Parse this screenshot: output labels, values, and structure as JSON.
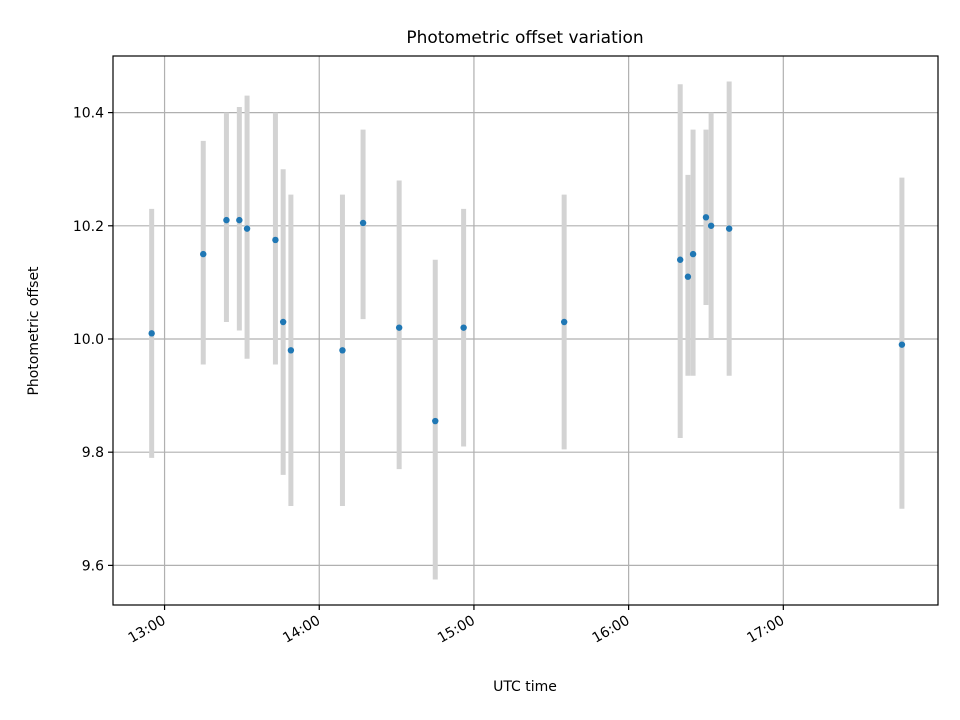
{
  "chart_data": {
    "type": "scatter",
    "title": "Photometric offset variation",
    "xlabel": "UTC time",
    "ylabel": "Photometric offset",
    "x_tick_labels": [
      "13:00",
      "14:00",
      "15:00",
      "16:00",
      "17:00"
    ],
    "x_tick_values": [
      "13:00",
      "14:00",
      "15:00",
      "16:00",
      "17:00"
    ],
    "y_ticks": [
      9.6,
      9.8,
      10.0,
      10.2,
      10.4
    ],
    "y_tick_labels": [
      "9.6",
      "9.8",
      "10.0",
      "10.2",
      "10.4"
    ],
    "xlim": [
      "12:40",
      "18:00"
    ],
    "ylim": [
      9.53,
      10.5
    ],
    "grid": true,
    "colors": {
      "point": "#1f77b4",
      "errorbar": "#d3d3d3",
      "grid": "#b0b0b0"
    },
    "points": [
      {
        "x": "12:55",
        "y": 10.01,
        "ylow": 9.79,
        "yhigh": 10.23
      },
      {
        "x": "13:15",
        "y": 10.15,
        "ylow": 9.955,
        "yhigh": 10.35
      },
      {
        "x": "13:24",
        "y": 10.21,
        "ylow": 10.03,
        "yhigh": 10.4
      },
      {
        "x": "13:29",
        "y": 10.21,
        "ylow": 10.015,
        "yhigh": 10.41
      },
      {
        "x": "13:32",
        "y": 10.195,
        "ylow": 9.965,
        "yhigh": 10.43
      },
      {
        "x": "13:43",
        "y": 10.175,
        "ylow": 9.955,
        "yhigh": 10.4
      },
      {
        "x": "13:46",
        "y": 10.03,
        "ylow": 9.76,
        "yhigh": 10.3
      },
      {
        "x": "13:49",
        "y": 9.98,
        "ylow": 9.705,
        "yhigh": 10.255
      },
      {
        "x": "14:09",
        "y": 9.98,
        "ylow": 9.705,
        "yhigh": 10.255
      },
      {
        "x": "14:17",
        "y": 10.205,
        "ylow": 10.035,
        "yhigh": 10.37
      },
      {
        "x": "14:31",
        "y": 10.02,
        "ylow": 9.77,
        "yhigh": 10.28
      },
      {
        "x": "14:45",
        "y": 9.855,
        "ylow": 9.575,
        "yhigh": 10.14
      },
      {
        "x": "14:56",
        "y": 10.02,
        "ylow": 9.81,
        "yhigh": 10.23
      },
      {
        "x": "15:35",
        "y": 10.03,
        "ylow": 9.805,
        "yhigh": 10.255
      },
      {
        "x": "16:20",
        "y": 10.14,
        "ylow": 9.825,
        "yhigh": 10.45
      },
      {
        "x": "16:23",
        "y": 10.11,
        "ylow": 9.935,
        "yhigh": 10.29
      },
      {
        "x": "16:25",
        "y": 10.15,
        "ylow": 9.935,
        "yhigh": 10.37
      },
      {
        "x": "16:30",
        "y": 10.215,
        "ylow": 10.06,
        "yhigh": 10.37
      },
      {
        "x": "16:32",
        "y": 10.2,
        "ylow": 10.0,
        "yhigh": 10.4
      },
      {
        "x": "16:39",
        "y": 10.195,
        "ylow": 9.935,
        "yhigh": 10.455
      },
      {
        "x": "17:46",
        "y": 9.99,
        "ylow": 9.7,
        "yhigh": 10.285
      }
    ]
  }
}
